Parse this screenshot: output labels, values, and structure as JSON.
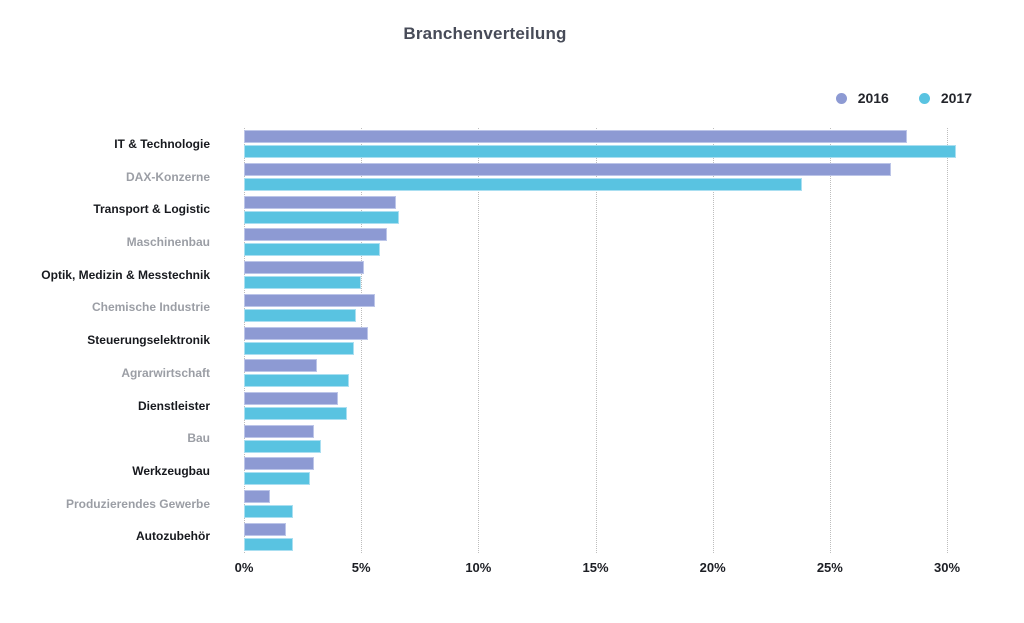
{
  "title": "Branchenverteilung",
  "legend": {
    "items": [
      {
        "label": "2016",
        "color": "#8d9ad3"
      },
      {
        "label": "2017",
        "color": "#59c3e1"
      }
    ]
  },
  "colors": {
    "series_2016": "#8d9ad3",
    "series_2016_border": "#bcc5e8",
    "series_2017": "#59c3e1",
    "series_2017_border": "#aadff1",
    "title_text": "#474b58",
    "category_label_dark": "#17191e",
    "category_label_grey": "#9b9ea5",
    "axis_tick_text": "#1c1e24",
    "gridline": "#bdbdbd",
    "background": "#ffffff"
  },
  "chart_data": {
    "type": "bar",
    "orientation": "horizontal",
    "title": "Branchenverteilung",
    "xlabel": "",
    "ylabel": "",
    "xlim": [
      0,
      30
    ],
    "x_ticks": [
      "0%",
      "5%",
      "10%",
      "15%",
      "20%",
      "25%",
      "30%"
    ],
    "grid": "dotted-vertical",
    "legend_position": "top-right",
    "categories": [
      "IT & Technologie",
      "DAX-Konzerne",
      "Transport & Logistic",
      "Maschinenbau",
      "Optik, Medizin & Messtechnik",
      "Chemische Industrie",
      "Steuerungselektronik",
      "Agrarwirtschaft",
      "Dienstleister",
      "Bau",
      "Werkzeugbau",
      "Produzierendes Gewerbe",
      "Autozubehör"
    ],
    "series": [
      {
        "name": "2016",
        "color": "#8d9ad3",
        "values": [
          28.3,
          27.6,
          6.5,
          6.1,
          5.1,
          5.6,
          5.3,
          3.1,
          4.0,
          3.0,
          3.0,
          1.1,
          1.8
        ]
      },
      {
        "name": "2017",
        "color": "#59c3e1",
        "values": [
          30.4,
          23.8,
          6.6,
          5.8,
          5.0,
          4.8,
          4.7,
          4.5,
          4.4,
          3.3,
          2.8,
          2.1,
          2.1
        ]
      }
    ]
  }
}
